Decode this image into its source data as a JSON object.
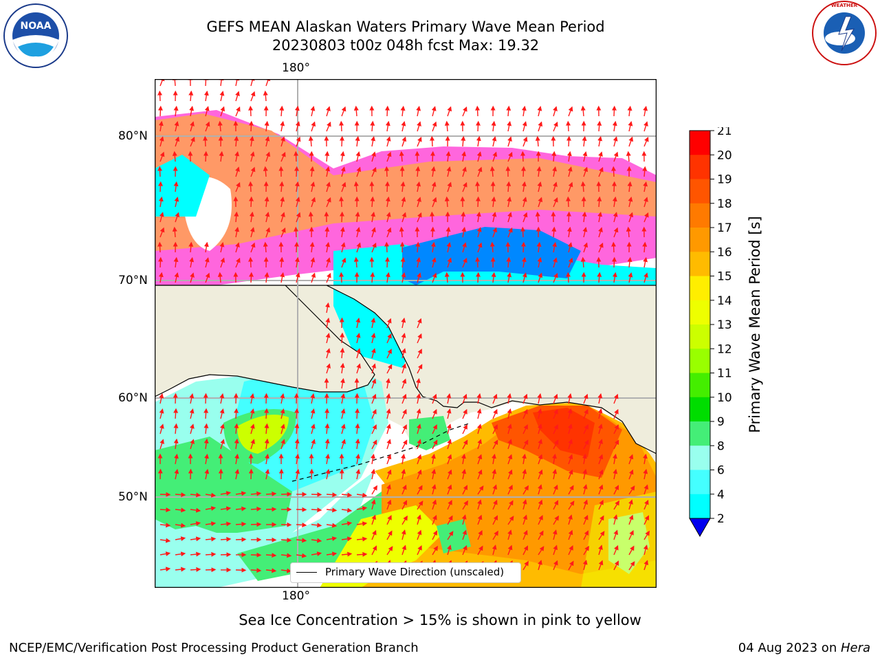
{
  "title": {
    "line1": "GEFS MEAN Alaskan Waters Primary Wave Mean Period",
    "line2": "20230803 t00z 048h fcst   Max: 19.32"
  },
  "logos": {
    "left": {
      "text": "NOAA",
      "icon": "noaa-logo"
    },
    "right": {
      "text": "NATIONAL WEATHER SERVICE",
      "icon": "nws-logo"
    }
  },
  "map": {
    "lon_label_top": "180°",
    "lon_label_bottom": "180°",
    "lat_labels": [
      "80°N",
      "70°N",
      "60°N",
      "50°N"
    ],
    "legend_label": "Primary Wave Direction (unscaled)",
    "land_color": "#efeddc",
    "arrow_color": "#ff1a1a"
  },
  "colorbar": {
    "label": "Primary Wave Mean Period [s]",
    "ticks": [
      "21",
      "20",
      "19",
      "18",
      "17",
      "16",
      "15",
      "14",
      "13",
      "12",
      "11",
      "10",
      "9",
      "8",
      "6",
      "4",
      "2"
    ],
    "colors": [
      "#ff0000",
      "#ff3300",
      "#ff5500",
      "#ff7a00",
      "#ff9900",
      "#ffbb00",
      "#ffee00",
      "#eeff00",
      "#ccff00",
      "#99ff00",
      "#44ee00",
      "#00dd00",
      "#44ee77",
      "#99ffee",
      "#44ffff",
      "#00ffff",
      "#00ccff",
      "#0077ff"
    ],
    "extend_color": "#0000ee"
  },
  "caption": "Sea Ice Concentration > 15% is shown in pink to yellow",
  "footer": {
    "left": "NCEP/EMC/Verification Post Processing Product Generation Branch",
    "right_date": "04 Aug 2023 on ",
    "right_host": "Hera"
  }
}
